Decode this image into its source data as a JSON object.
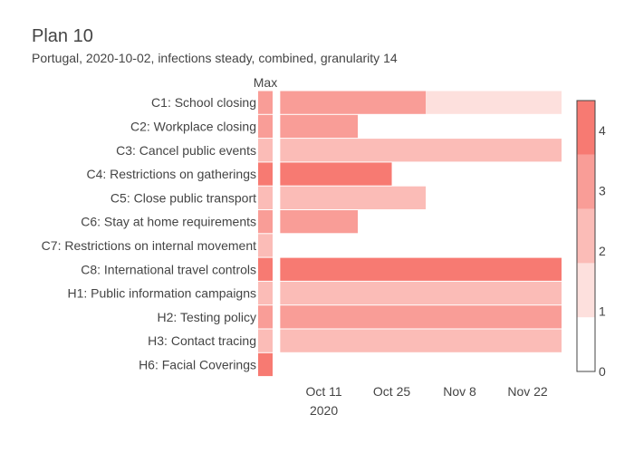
{
  "title": "Plan 10",
  "subtitle": "Portugal, 2020-10-02, infections steady, combined, granularity 14",
  "chart_data": {
    "type": "heatmap",
    "max_column_label": "Max",
    "categories": [
      "C1: School closing",
      "C2: Workplace closing",
      "C3: Cancel public events",
      "C4: Restrictions on gatherings",
      "C5: Close public transport",
      "C6: Stay at home requirements",
      "C7: Restrictions on internal movement",
      "C8: International travel controls",
      "H1: Public information campaigns",
      "H2: Testing policy",
      "H3: Contact tracing",
      "H6: Facial Coverings"
    ],
    "max_values": [
      3,
      3,
      2,
      4,
      2,
      3,
      2,
      4,
      2,
      3,
      2,
      4
    ],
    "segments": [
      {
        "category": "C1: School closing",
        "start": "2020-10-02",
        "end": "2020-11-01",
        "value": 3
      },
      {
        "category": "C1: School closing",
        "start": "2020-11-01",
        "end": "2020-11-29",
        "value": 1
      },
      {
        "category": "C2: Workplace closing",
        "start": "2020-10-02",
        "end": "2020-10-18",
        "value": 3
      },
      {
        "category": "C3: Cancel public events",
        "start": "2020-10-02",
        "end": "2020-11-29",
        "value": 2
      },
      {
        "category": "C4: Restrictions on gatherings",
        "start": "2020-10-02",
        "end": "2020-10-25",
        "value": 4
      },
      {
        "category": "C5: Close public transport",
        "start": "2020-10-02",
        "end": "2020-11-01",
        "value": 2
      },
      {
        "category": "C6: Stay at home requirements",
        "start": "2020-10-02",
        "end": "2020-10-18",
        "value": 3
      },
      {
        "category": "C8: International travel controls",
        "start": "2020-10-02",
        "end": "2020-11-29",
        "value": 4
      },
      {
        "category": "H1: Public information campaigns",
        "start": "2020-10-02",
        "end": "2020-11-29",
        "value": 2
      },
      {
        "category": "H2: Testing policy",
        "start": "2020-10-02",
        "end": "2020-11-29",
        "value": 3
      },
      {
        "category": "H3: Contact tracing",
        "start": "2020-10-02",
        "end": "2020-11-29",
        "value": 2
      }
    ],
    "x_range": [
      "2020-10-01",
      "2020-11-29"
    ],
    "x_ticks": [
      {
        "date": "2020-10-11",
        "label": "Oct 11",
        "sublabel": "2020"
      },
      {
        "date": "2020-10-25",
        "label": "Oct 25",
        "sublabel": ""
      },
      {
        "date": "2020-11-08",
        "label": "Nov 8",
        "sublabel": ""
      },
      {
        "date": "2020-11-22",
        "label": "Nov 22",
        "sublabel": ""
      }
    ],
    "colorscale": {
      "range": [
        0,
        4.5
      ],
      "ticks": [
        0,
        1,
        2,
        3,
        4
      ],
      "bands": [
        {
          "from": 0,
          "to": 0.9,
          "color": "#ffffff"
        },
        {
          "from": 0.9,
          "to": 1.8,
          "color": "#fde0dd"
        },
        {
          "from": 1.8,
          "to": 2.7,
          "color": "#fbbcb7"
        },
        {
          "from": 2.7,
          "to": 3.6,
          "color": "#f99d97"
        },
        {
          "from": 3.6,
          "to": 4.5,
          "color": "#f77a72"
        }
      ]
    }
  }
}
